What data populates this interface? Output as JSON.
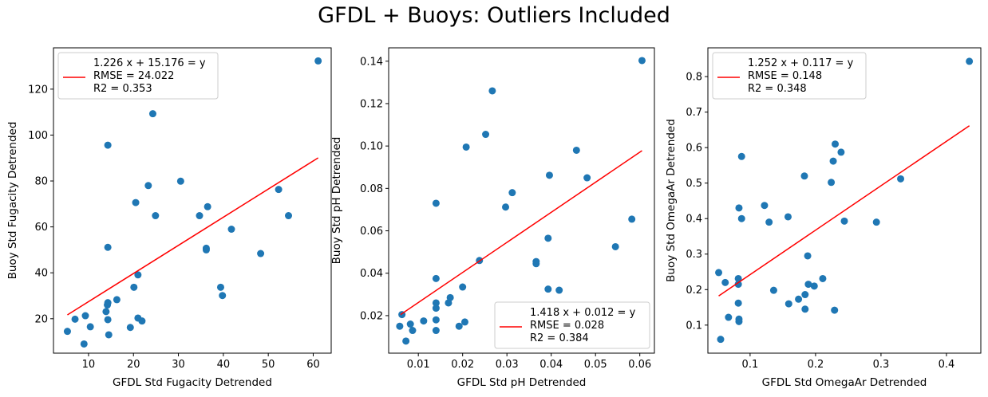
{
  "title": "GFDL + Buoys: Outliers Included",
  "colors": {
    "points": "#1f77b4",
    "fit_line": "#ff0000",
    "axes": "#000000"
  },
  "chart_data": [
    {
      "type": "scatter",
      "xlabel": "GFDL Std Fugacity Detrended",
      "ylabel": "Buoy Std Fugacity Detrended",
      "xlim": [
        2.2,
        64
      ],
      "ylim": [
        5,
        138
      ],
      "xticks": [
        10,
        20,
        30,
        40,
        50,
        60
      ],
      "xtick_labels": [
        "10",
        "20",
        "30",
        "40",
        "50",
        "60"
      ],
      "yticks": [
        20,
        40,
        60,
        80,
        100,
        120
      ],
      "ytick_labels": [
        "20",
        "40",
        "60",
        "80",
        "100",
        "120"
      ],
      "legend_position": "top-left",
      "fit": {
        "slope": 1.226,
        "intercept": 15.176,
        "x_range": [
          5.3,
          61.1
        ]
      },
      "legend_lines": [
        "1.226 x + 15.176 = y",
        "RMSE = 24.022",
        "R2 = 0.353"
      ],
      "points": [
        {
          "x": 5.3,
          "y": 14.5
        },
        {
          "x": 7.0,
          "y": 19.8
        },
        {
          "x": 9.0,
          "y": 9.0
        },
        {
          "x": 9.3,
          "y": 21.3
        },
        {
          "x": 10.4,
          "y": 16.5
        },
        {
          "x": 13.9,
          "y": 23.1
        },
        {
          "x": 14.2,
          "y": 26.0
        },
        {
          "x": 14.3,
          "y": 27.0
        },
        {
          "x": 14.3,
          "y": 19.6
        },
        {
          "x": 14.5,
          "y": 13.0
        },
        {
          "x": 14.3,
          "y": 51.1
        },
        {
          "x": 14.3,
          "y": 95.6
        },
        {
          "x": 16.3,
          "y": 28.3
        },
        {
          "x": 19.3,
          "y": 16.2
        },
        {
          "x": 20.1,
          "y": 33.7
        },
        {
          "x": 20.5,
          "y": 70.6
        },
        {
          "x": 21.0,
          "y": 20.3
        },
        {
          "x": 21.0,
          "y": 39.1
        },
        {
          "x": 21.9,
          "y": 19.0
        },
        {
          "x": 23.3,
          "y": 78.0
        },
        {
          "x": 24.3,
          "y": 109.3
        },
        {
          "x": 24.9,
          "y": 64.9
        },
        {
          "x": 30.5,
          "y": 79.9
        },
        {
          "x": 34.7,
          "y": 64.9
        },
        {
          "x": 36.2,
          "y": 50.7
        },
        {
          "x": 36.2,
          "y": 50.0
        },
        {
          "x": 36.5,
          "y": 68.8
        },
        {
          "x": 39.4,
          "y": 33.7
        },
        {
          "x": 39.8,
          "y": 30.1
        },
        {
          "x": 41.8,
          "y": 59.0
        },
        {
          "x": 48.3,
          "y": 48.4
        },
        {
          "x": 52.3,
          "y": 76.3
        },
        {
          "x": 54.5,
          "y": 64.9
        },
        {
          "x": 61.1,
          "y": 132.3
        }
      ]
    },
    {
      "type": "scatter",
      "xlabel": "GFDL Std pH Detrended",
      "ylabel": "Buoy Std pH Detrended",
      "xlim": [
        0.0033,
        0.0633
      ],
      "ylim": [
        0.0023,
        0.1463
      ],
      "xticks": [
        0.01,
        0.02,
        0.03,
        0.04,
        0.05,
        0.06
      ],
      "xtick_labels": [
        "0.01",
        "0.02",
        "0.03",
        "0.04",
        "0.05",
        "0.06"
      ],
      "yticks": [
        0.02,
        0.04,
        0.06,
        0.08,
        0.1,
        0.12,
        0.14
      ],
      "ytick_labels": [
        "0.02",
        "0.04",
        "0.06",
        "0.08",
        "0.10",
        "0.12",
        "0.14"
      ],
      "legend_position": "bottom-right",
      "fit": {
        "slope": 1.418,
        "intercept": 0.012,
        "x_range": [
          0.006,
          0.0605
        ]
      },
      "legend_lines": [
        "1.418 x + 0.012 = y",
        "RMSE = 0.028",
        "R2 = 0.384"
      ],
      "points": [
        {
          "x": 0.0058,
          "y": 0.015
        },
        {
          "x": 0.0063,
          "y": 0.0205
        },
        {
          "x": 0.0072,
          "y": 0.008
        },
        {
          "x": 0.0082,
          "y": 0.016
        },
        {
          "x": 0.0087,
          "y": 0.013
        },
        {
          "x": 0.0112,
          "y": 0.0175
        },
        {
          "x": 0.014,
          "y": 0.073
        },
        {
          "x": 0.014,
          "y": 0.0375
        },
        {
          "x": 0.014,
          "y": 0.026
        },
        {
          "x": 0.014,
          "y": 0.0235
        },
        {
          "x": 0.014,
          "y": 0.018
        },
        {
          "x": 0.014,
          "y": 0.013
        },
        {
          "x": 0.0168,
          "y": 0.026
        },
        {
          "x": 0.0172,
          "y": 0.0285
        },
        {
          "x": 0.0192,
          "y": 0.015
        },
        {
          "x": 0.02,
          "y": 0.0335
        },
        {
          "x": 0.0205,
          "y": 0.017
        },
        {
          "x": 0.0208,
          "y": 0.0995
        },
        {
          "x": 0.0238,
          "y": 0.046
        },
        {
          "x": 0.0252,
          "y": 0.1055
        },
        {
          "x": 0.0267,
          "y": 0.126
        },
        {
          "x": 0.0297,
          "y": 0.0712
        },
        {
          "x": 0.0312,
          "y": 0.078
        },
        {
          "x": 0.0366,
          "y": 0.0445
        },
        {
          "x": 0.0366,
          "y": 0.0455
        },
        {
          "x": 0.0393,
          "y": 0.0325
        },
        {
          "x": 0.0393,
          "y": 0.0565
        },
        {
          "x": 0.0396,
          "y": 0.0862
        },
        {
          "x": 0.0418,
          "y": 0.032
        },
        {
          "x": 0.0457,
          "y": 0.098
        },
        {
          "x": 0.0481,
          "y": 0.085
        },
        {
          "x": 0.0545,
          "y": 0.0525
        },
        {
          "x": 0.0582,
          "y": 0.0655
        },
        {
          "x": 0.0605,
          "y": 0.1403
        }
      ]
    },
    {
      "type": "scatter",
      "xlabel": "GFDL Std OmegaAr Detrended",
      "ylabel": "Buoy Std OmegaAr Detrended",
      "xlim": [
        0.0355,
        0.4525
      ],
      "ylim": [
        0.021,
        0.881
      ],
      "xticks": [
        0.1,
        0.2,
        0.3,
        0.4
      ],
      "xtick_labels": [
        "0.1",
        "0.2",
        "0.3",
        "0.4"
      ],
      "yticks": [
        0.1,
        0.2,
        0.3,
        0.4,
        0.5,
        0.6,
        0.7,
        0.8
      ],
      "ytick_labels": [
        "0.1",
        "0.2",
        "0.3",
        "0.4",
        "0.5",
        "0.6",
        "0.7",
        "0.8"
      ],
      "legend_position": "top-left",
      "fit": {
        "slope": 1.252,
        "intercept": 0.117,
        "x_range": [
          0.052,
          0.435
        ]
      },
      "legend_lines": [
        "1.252 x + 0.117 = y",
        "RMSE = 0.148",
        "R2 = 0.348"
      ],
      "points": [
        {
          "x": 0.052,
          "y": 0.248
        },
        {
          "x": 0.055,
          "y": 0.06
        },
        {
          "x": 0.062,
          "y": 0.22
        },
        {
          "x": 0.067,
          "y": 0.122
        },
        {
          "x": 0.082,
          "y": 0.231
        },
        {
          "x": 0.082,
          "y": 0.215
        },
        {
          "x": 0.082,
          "y": 0.162
        },
        {
          "x": 0.083,
          "y": 0.43
        },
        {
          "x": 0.083,
          "y": 0.117
        },
        {
          "x": 0.083,
          "y": 0.11
        },
        {
          "x": 0.087,
          "y": 0.575
        },
        {
          "x": 0.087,
          "y": 0.4
        },
        {
          "x": 0.122,
          "y": 0.437
        },
        {
          "x": 0.129,
          "y": 0.39
        },
        {
          "x": 0.136,
          "y": 0.198
        },
        {
          "x": 0.158,
          "y": 0.405
        },
        {
          "x": 0.159,
          "y": 0.16
        },
        {
          "x": 0.174,
          "y": 0.173
        },
        {
          "x": 0.183,
          "y": 0.52
        },
        {
          "x": 0.184,
          "y": 0.186
        },
        {
          "x": 0.184,
          "y": 0.145
        },
        {
          "x": 0.188,
          "y": 0.295
        },
        {
          "x": 0.189,
          "y": 0.215
        },
        {
          "x": 0.198,
          "y": 0.21
        },
        {
          "x": 0.211,
          "y": 0.231
        },
        {
          "x": 0.224,
          "y": 0.502
        },
        {
          "x": 0.227,
          "y": 0.562
        },
        {
          "x": 0.229,
          "y": 0.142
        },
        {
          "x": 0.23,
          "y": 0.61
        },
        {
          "x": 0.239,
          "y": 0.587
        },
        {
          "x": 0.244,
          "y": 0.393
        },
        {
          "x": 0.293,
          "y": 0.39
        },
        {
          "x": 0.33,
          "y": 0.512
        },
        {
          "x": 0.435,
          "y": 0.843
        }
      ]
    }
  ]
}
